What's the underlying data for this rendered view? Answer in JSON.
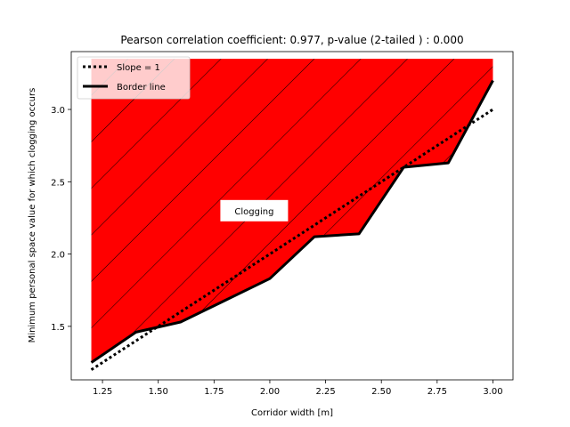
{
  "chart_data": {
    "type": "line",
    "title": "Pearson correlation coefficient: 0.977, p-value (2-tailed ) : 0.000",
    "xlabel": "Corridor width [m]",
    "ylabel": "Minimum personal space value for which clogging occurs",
    "xlim": [
      1.11,
      3.09
    ],
    "ylim": [
      1.13,
      3.4
    ],
    "xticks": [
      1.25,
      1.5,
      1.75,
      2.0,
      2.25,
      2.5,
      2.75,
      3.0
    ],
    "xtick_labels": [
      "1.25",
      "1.50",
      "1.75",
      "2.00",
      "2.25",
      "2.50",
      "2.75",
      "3.00"
    ],
    "yticks": [
      1.5,
      2.0,
      2.5,
      3.0
    ],
    "ytick_labels": [
      "1.5",
      "2.0",
      "2.5",
      "3.0"
    ],
    "grid": false,
    "legend_position": "top-left",
    "series": [
      {
        "name": "Slope = 1",
        "style": "dotted",
        "color": "#000000",
        "x": [
          1.2,
          3.0
        ],
        "y": [
          1.2,
          3.0
        ]
      },
      {
        "name": "Border line",
        "style": "solid",
        "color": "#000000",
        "x": [
          1.2,
          1.4,
          1.6,
          1.8,
          2.0,
          2.2,
          2.4,
          2.6,
          2.8,
          3.0
        ],
        "y": [
          1.25,
          1.46,
          1.53,
          1.68,
          1.83,
          2.12,
          2.14,
          2.6,
          2.63,
          3.2
        ]
      }
    ],
    "filled_region": {
      "label": "Clogging",
      "color": "#ff0000",
      "hatch": "diagonal",
      "top": 3.35
    },
    "annotation": {
      "text": "Clogging",
      "x": 1.93,
      "y": 2.3
    }
  }
}
